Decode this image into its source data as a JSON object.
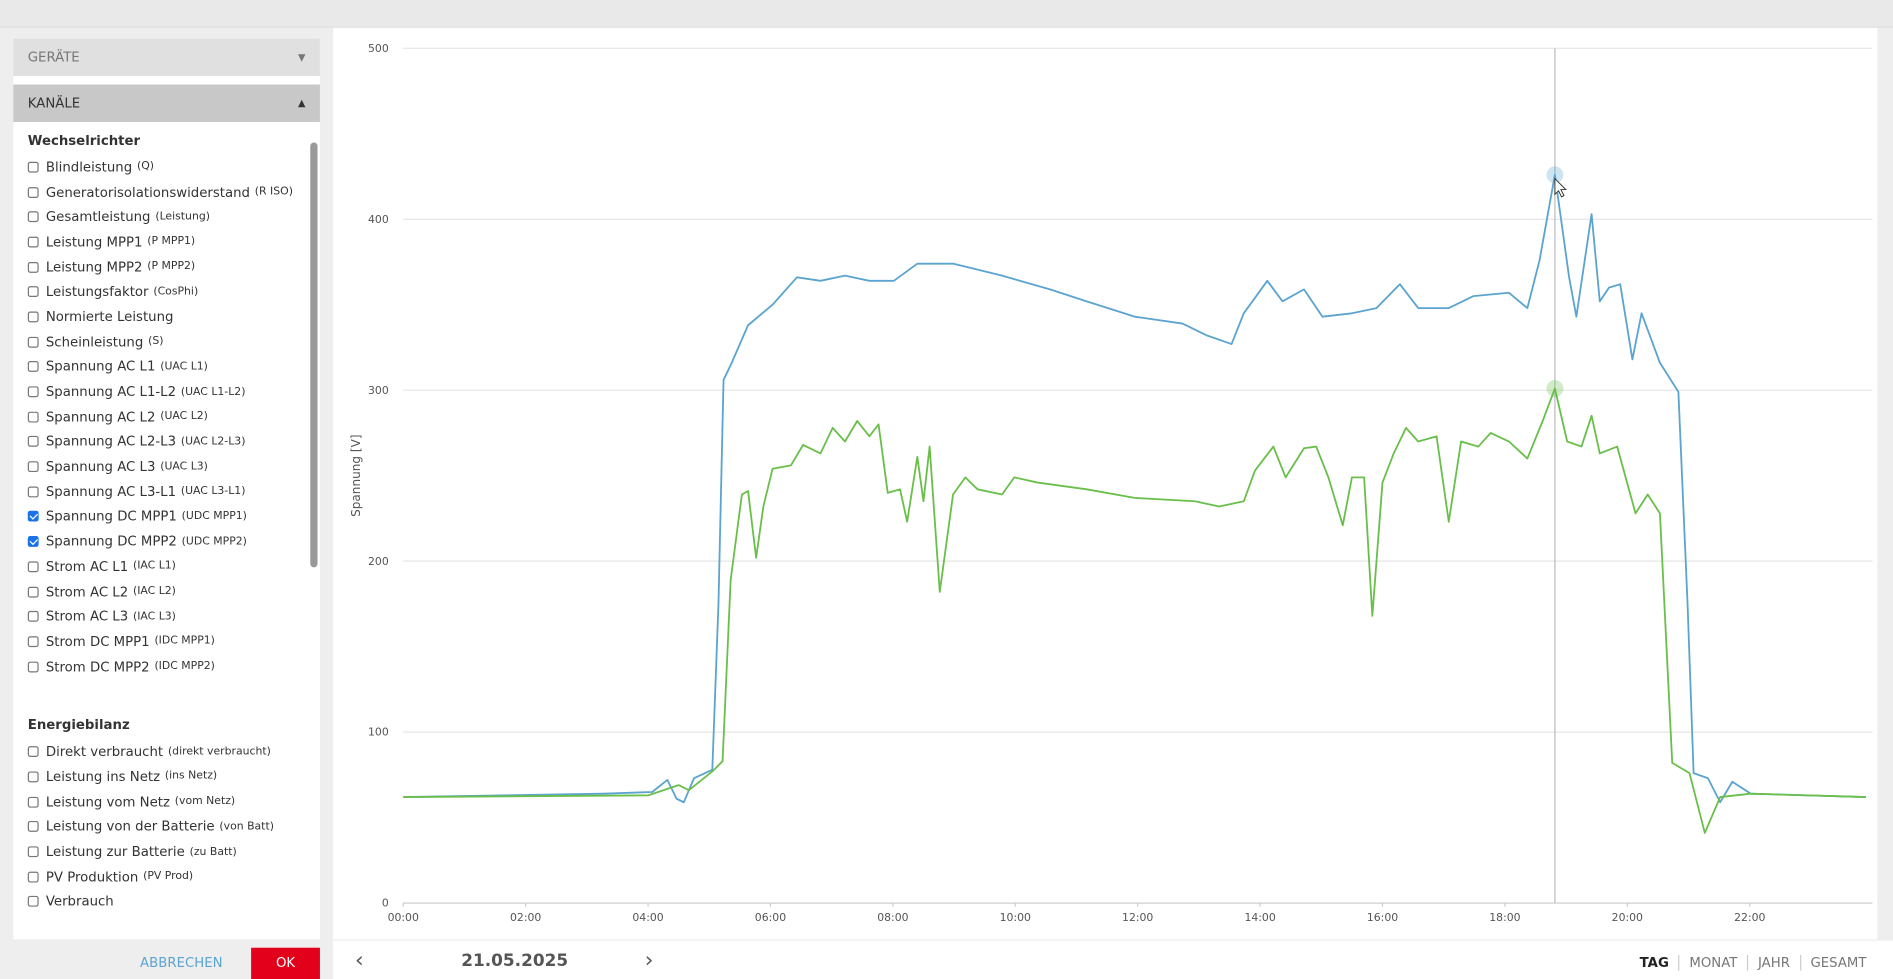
{
  "sidebar": {
    "sections": [
      "GERÄTE",
      "KANÄLE"
    ],
    "groups": [
      {
        "title": "Wechselrichter",
        "items": [
          {
            "label": "Blindleistung",
            "code": "(Q)",
            "checked": false
          },
          {
            "label": "Generatorisolationswiderstand",
            "code": "(R ISO)",
            "checked": false
          },
          {
            "label": "Gesamtleistung",
            "code": "(Leistung)",
            "checked": false
          },
          {
            "label": "Leistung MPP1",
            "code": "(P MPP1)",
            "checked": false
          },
          {
            "label": "Leistung MPP2",
            "code": "(P MPP2)",
            "checked": false
          },
          {
            "label": "Leistungsfaktor",
            "code": "(CosPhi)",
            "checked": false
          },
          {
            "label": "Normierte Leistung",
            "checked": false
          },
          {
            "label": "Scheinleistung",
            "code": "(S)",
            "checked": false
          },
          {
            "label": "Spannung AC L1",
            "code": "(UAC L1)",
            "checked": false
          },
          {
            "label": "Spannung AC L1-L2",
            "code": "(UAC L1-L2)",
            "checked": false
          },
          {
            "label": "Spannung AC L2",
            "code": "(UAC L2)",
            "checked": false
          },
          {
            "label": "Spannung AC L2-L3",
            "code": "(UAC L2-L3)",
            "checked": false
          },
          {
            "label": "Spannung AC L3",
            "code": "(UAC L3)",
            "checked": false
          },
          {
            "label": "Spannung AC L3-L1",
            "code": "(UAC L3-L1)",
            "checked": false
          },
          {
            "label": "Spannung DC MPP1",
            "code": "(UDC MPP1)",
            "checked": true
          },
          {
            "label": "Spannung DC MPP2",
            "code": "(UDC MPP2)",
            "checked": true
          },
          {
            "label": "Strom AC L1",
            "code": "(IAC L1)",
            "checked": false
          },
          {
            "label": "Strom AC L2",
            "code": "(IAC L2)",
            "checked": false
          },
          {
            "label": "Strom AC L3",
            "code": "(IAC L3)",
            "checked": false
          },
          {
            "label": "Strom DC MPP1",
            "code": "(IDC MPP1)",
            "checked": false
          },
          {
            "label": "Strom DC MPP2",
            "code": "(IDC MPP2)",
            "checked": false
          }
        ]
      },
      {
        "title": "Energiebilanz",
        "items": [
          {
            "label": "Direkt verbraucht",
            "code": "(direkt verbraucht)",
            "checked": false
          },
          {
            "label": "Leistung ins Netz",
            "code": "(ins Netz)",
            "checked": false
          },
          {
            "label": "Leistung vom Netz",
            "code": "(vom Netz)",
            "checked": false
          },
          {
            "label": "Leistung von der Batterie",
            "code": "(von Batt)",
            "checked": false
          },
          {
            "label": "Leistung zur Batterie",
            "code": "(zu Batt)",
            "checked": false
          },
          {
            "label": "PV Produktion",
            "code": "(PV Prod)",
            "checked": false
          },
          {
            "label": "Verbrauch",
            "checked": false
          }
        ]
      }
    ],
    "buttons": {
      "cancel": "ABBRECHEN",
      "ok": "OK"
    }
  },
  "nav": {
    "date": "21.05.2025",
    "periods": [
      "TAG",
      "MONAT",
      "JAHR",
      "GESAMT"
    ]
  },
  "chart_data": {
    "type": "line",
    "y_label": "Spannung [V]",
    "grid": true,
    "xlim": [
      "00:00",
      "23:58"
    ],
    "xticks": [
      "00:00",
      "02:00",
      "04:00",
      "06:00",
      "08:00",
      "10:00",
      "12:00",
      "14:00",
      "16:00",
      "18:00",
      "20:00",
      "22:00"
    ],
    "ylim": [
      0,
      500
    ],
    "yticks": [
      0,
      100,
      200,
      300,
      400,
      500
    ],
    "crosshair_x": "18:49",
    "series": [
      {
        "color": "#5ba4cf",
        "x": [
          "00:00",
          "03:16",
          "04:04",
          "04:19",
          "04:28",
          "04:35",
          "04:45",
          "05:03",
          "05:09",
          "05:14",
          "05:22",
          "05:38",
          "06:02",
          "06:26",
          "06:49",
          "07:13",
          "07:37",
          "08:01",
          "08:24",
          "08:59",
          "09:47",
          "10:34",
          "11:10",
          "11:57",
          "12:44",
          "13:08",
          "13:32",
          "13:44",
          "14:07",
          "14:22",
          "14:43",
          "15:01",
          "15:30",
          "15:54",
          "16:17",
          "16:35",
          "17:05",
          "17:29",
          "18:04",
          "18:22",
          "18:34",
          "18:49",
          "19:03",
          "19:10",
          "19:25",
          "19:33",
          "19:42",
          "19:53",
          "20:05",
          "20:14",
          "20:32",
          "20:50",
          "20:59",
          "21:05",
          "21:19",
          "21:31",
          "21:43",
          "22:01",
          "23:54"
        ],
        "values": [
          62,
          64,
          65,
          72,
          61,
          59,
          73,
          78,
          175,
          306,
          316,
          338,
          350,
          366,
          364,
          367,
          364,
          364,
          374,
          374,
          367,
          359,
          352,
          343,
          339,
          332,
          327,
          345,
          364,
          352,
          359,
          343,
          345,
          348,
          362,
          348,
          348,
          355,
          357,
          348,
          376,
          426,
          366,
          343,
          403,
          352,
          360,
          362,
          318,
          345,
          316,
          299,
          175,
          76,
          73,
          59,
          71,
          64,
          62
        ]
      },
      {
        "color": "#6abf4b",
        "x": [
          "00:00",
          "04:00",
          "04:30",
          "04:40",
          "05:03",
          "05:13",
          "05:21",
          "05:32",
          "05:38",
          "05:46",
          "05:53",
          "06:02",
          "06:20",
          "06:32",
          "06:49",
          "07:01",
          "07:13",
          "07:25",
          "07:37",
          "07:46",
          "07:55",
          "08:07",
          "08:14",
          "08:24",
          "08:30",
          "08:36",
          "08:46",
          "08:59",
          "09:11",
          "09:23",
          "09:47",
          "09:59",
          "10:22",
          "11:10",
          "11:57",
          "12:56",
          "13:20",
          "13:44",
          "13:55",
          "14:13",
          "14:25",
          "14:43",
          "14:55",
          "15:07",
          "15:21",
          "15:30",
          "15:42",
          "15:50",
          "16:00",
          "16:11",
          "16:23",
          "16:35",
          "16:53",
          "17:05",
          "17:17",
          "17:34",
          "17:46",
          "18:04",
          "18:22",
          "18:37",
          "18:49",
          "19:01",
          "19:15",
          "19:25",
          "19:33",
          "19:50",
          "20:08",
          "20:20",
          "20:32",
          "20:44",
          "21:01",
          "21:16",
          "21:31",
          "22:01",
          "23:54"
        ],
        "values": [
          62,
          63,
          69,
          66,
          77,
          83,
          189,
          239,
          241,
          202,
          232,
          254,
          256,
          268,
          263,
          278,
          270,
          282,
          273,
          280,
          240,
          242,
          223,
          261,
          235,
          267,
          182,
          239,
          249,
          242,
          239,
          249,
          246,
          242,
          237,
          235,
          232,
          235,
          253,
          267,
          249,
          266,
          267,
          249,
          221,
          249,
          249,
          168,
          246,
          263,
          278,
          270,
          273,
          223,
          270,
          267,
          275,
          270,
          260,
          282,
          301,
          270,
          267,
          285,
          263,
          267,
          228,
          239,
          228,
          82,
          76,
          41,
          62,
          64,
          62
        ]
      }
    ]
  }
}
